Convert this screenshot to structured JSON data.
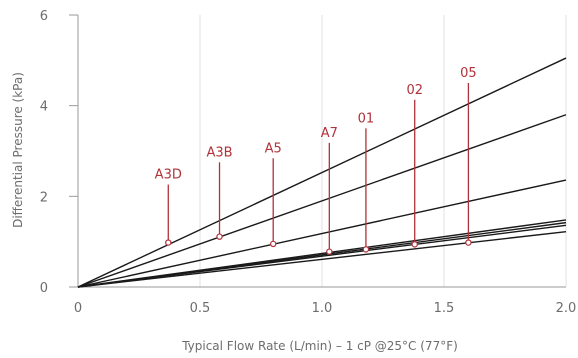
{
  "chart_data": {
    "type": "line",
    "title": "",
    "xlabel": "Typical Flow Rate (L/min) – 1 cP @25°C (77°F)",
    "ylabel": "Differential Pressure (kPa)",
    "xlim": [
      0,
      2.0
    ],
    "ylim": [
      0,
      6
    ],
    "x_ticks": [
      "0",
      "0.5",
      "1.0",
      "1.5",
      "2.0"
    ],
    "y_ticks": [
      "0",
      "2",
      "4",
      "6"
    ],
    "grid": "vertical",
    "colors": {
      "series": "#1a1a1a",
      "annotation": "#b0323a",
      "grid": "#e0e0e0",
      "axis": "#9a9a9a"
    },
    "series": [
      {
        "name": "A3D",
        "x": [
          0,
          2.0
        ],
        "y": [
          0,
          5.05
        ],
        "label_point": {
          "x": 0.37,
          "y": 0.98
        }
      },
      {
        "name": "A3B",
        "x": [
          0,
          2.0
        ],
        "y": [
          0,
          3.8
        ],
        "label_point": {
          "x": 0.58,
          "y": 1.11
        }
      },
      {
        "name": "A5",
        "x": [
          0,
          2.0
        ],
        "y": [
          0,
          2.36
        ],
        "label_point": {
          "x": 0.8,
          "y": 0.95
        }
      },
      {
        "name": "A7",
        "x": [
          0,
          2.0
        ],
        "y": [
          0,
          1.48
        ],
        "label_point": {
          "x": 1.03,
          "y": 0.78
        }
      },
      {
        "name": "01",
        "x": [
          0,
          2.0
        ],
        "y": [
          0,
          1.42
        ],
        "label_point": {
          "x": 1.18,
          "y": 0.83
        }
      },
      {
        "name": "02",
        "x": [
          0,
          2.0
        ],
        "y": [
          0,
          1.36
        ],
        "label_point": {
          "x": 1.38,
          "y": 0.94
        }
      },
      {
        "name": "05",
        "x": [
          0,
          2.0
        ],
        "y": [
          0,
          1.22
        ],
        "label_point": {
          "x": 1.6,
          "y": 0.98
        }
      }
    ],
    "annotation_label_y": [
      2.26,
      2.75,
      2.84,
      3.18,
      3.5,
      4.13,
      4.5
    ]
  }
}
